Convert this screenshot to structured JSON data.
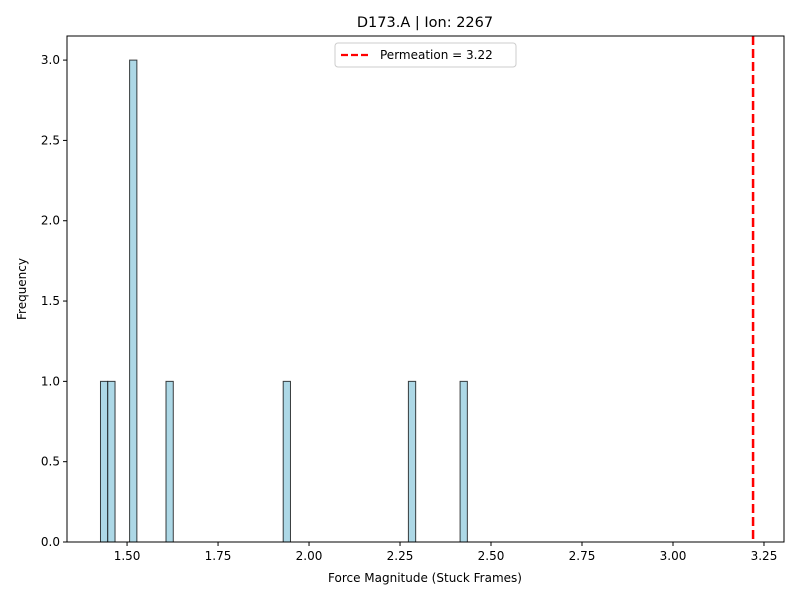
{
  "chart_data": {
    "type": "bar",
    "title": "D173.A | Ion: 2267",
    "xlabel": "Force Magnitude (Stuck Frames)",
    "ylabel": "Frequency",
    "xlim": [
      1.335,
      3.305
    ],
    "ylim": [
      0,
      3.15
    ],
    "x_ticks": [
      "1.50",
      "1.75",
      "2.00",
      "2.25",
      "2.50",
      "2.75",
      "3.00",
      "3.25"
    ],
    "y_ticks": [
      "0.0",
      "0.5",
      "1.0",
      "1.5",
      "2.0",
      "2.5",
      "3.0"
    ],
    "bin_width": 0.02,
    "bars": [
      {
        "x": 1.437,
        "value": 1
      },
      {
        "x": 1.457,
        "value": 1
      },
      {
        "x": 1.517,
        "value": 3
      },
      {
        "x": 1.617,
        "value": 1
      },
      {
        "x": 1.939,
        "value": 1
      },
      {
        "x": 2.283,
        "value": 1
      },
      {
        "x": 2.425,
        "value": 1
      }
    ],
    "reference_line": {
      "label": "Permeation = 3.22",
      "x": 3.22,
      "color": "#ff0000",
      "style": "dashed"
    },
    "bar_color": "#add8e6",
    "bar_edge_color": "#000000",
    "legend_position": "upper center",
    "grid": false
  }
}
